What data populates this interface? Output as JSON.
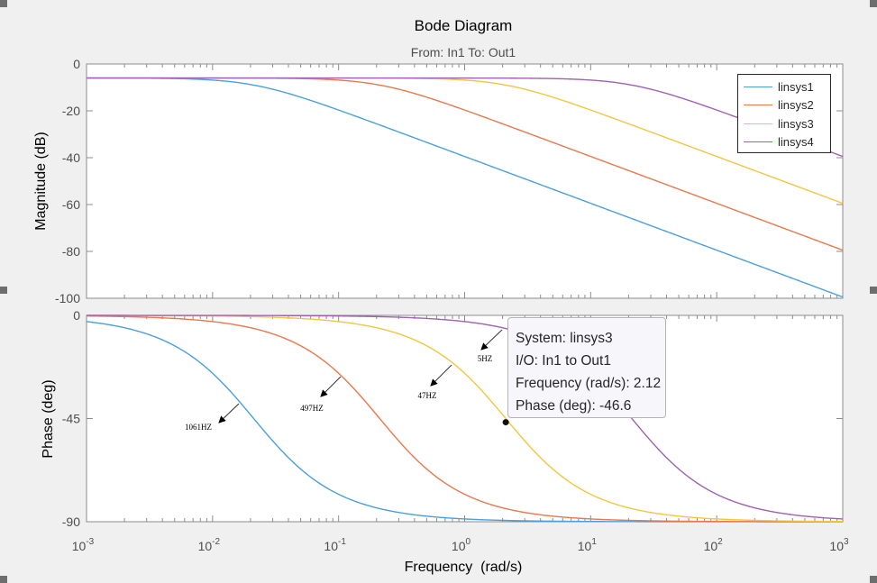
{
  "chart_data": {
    "type": "line",
    "title": "Bode Diagram",
    "subtitle": "From: In1  To: Out1",
    "xlabel": "Frequency  (rad/s)",
    "xscale": "log",
    "xlim": [
      0.001,
      1000
    ],
    "xticks": [
      {
        "base": "10",
        "exp": "-3"
      },
      {
        "base": "10",
        "exp": "-2"
      },
      {
        "base": "10",
        "exp": "-1"
      },
      {
        "base": "10",
        "exp": "0"
      },
      {
        "base": "10",
        "exp": "1"
      },
      {
        "base": "10",
        "exp": "2"
      },
      {
        "base": "10",
        "exp": "3"
      }
    ],
    "magnitude": {
      "ylabel": "Magnitude (dB)",
      "ylim": [
        -100,
        0
      ],
      "yticks": [
        "0",
        "-20",
        "-40",
        "-60",
        "-80",
        "-100"
      ]
    },
    "phase": {
      "ylabel": "Phase (deg)",
      "ylim": [
        -90,
        0
      ],
      "yticks": [
        "0",
        "-45",
        "-90"
      ]
    },
    "grid": false,
    "legend_position": "top-right",
    "series": [
      {
        "name": "linsys1",
        "color": "#0072bd",
        "dc_gain_db": -6,
        "corner_rad_s": 0.0212
      },
      {
        "name": "linsys2",
        "color": "#d95319",
        "dc_gain_db": -6,
        "corner_rad_s": 0.212
      },
      {
        "name": "linsys3",
        "color": "#edb120",
        "dc_gain_db": -6,
        "corner_rad_s": 2.12
      },
      {
        "name": "linsys4",
        "color": "#7e2f8e",
        "dc_gain_db": -6,
        "corner_rad_s": 21.2
      }
    ],
    "annotations": [
      {
        "text": "1061HZ",
        "series": "linsys1"
      },
      {
        "text": "497HZ",
        "series": "linsys2"
      },
      {
        "text": "47HZ",
        "series": "linsys3"
      },
      {
        "text": "5HZ",
        "series": "linsys4"
      }
    ],
    "datatip": {
      "system": "System: linsys3",
      "io": "I/O: In1 to Out1",
      "frequency": "Frequency (rad/s): 2.12",
      "phase": "Phase (deg): -46.6",
      "x": 2.12,
      "y": -46.6
    }
  }
}
